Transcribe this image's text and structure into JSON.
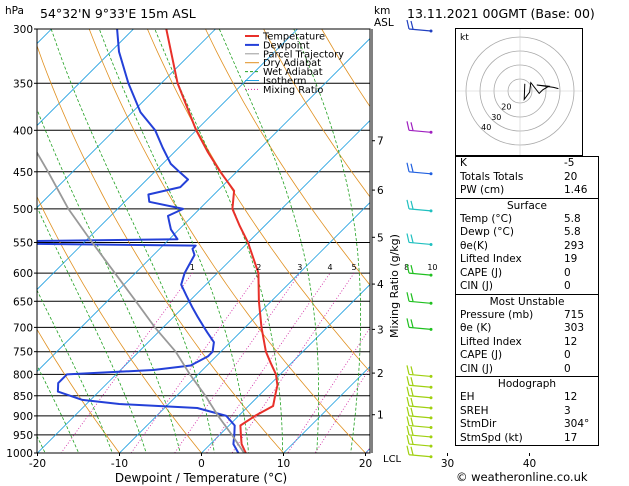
{
  "header": {
    "location": "54°32'N 9°33'E 15m ASL",
    "datetime": "13.11.2021 00GMT (Base: 00)"
  },
  "footer": "© weatheronline.co.uk",
  "axes": {
    "y_unit": "hPa",
    "km_unit": "km",
    "asl_label": "ASL",
    "xlabel": "Dewpoint / Temperature (°C)",
    "mixing_label": "Mixing Ratio (g/kg)",
    "lcl_label": "LCL"
  },
  "chart_data": {
    "type": "line",
    "title": "",
    "xlabel": "Dewpoint / Temperature (°C)",
    "ylabel": "hPa",
    "xlim": [
      -35,
      40
    ],
    "ylim": [
      1000,
      300
    ],
    "pressure_ticks": [
      300,
      350,
      400,
      450,
      500,
      550,
      600,
      650,
      700,
      750,
      800,
      850,
      900,
      950,
      1000
    ],
    "temp_ticks": [
      -30,
      -20,
      -10,
      0,
      10,
      20,
      30,
      40
    ],
    "km_ticks": [
      {
        "label": "1",
        "p": 897
      },
      {
        "label": "2",
        "p": 797
      },
      {
        "label": "3",
        "p": 704
      },
      {
        "label": "4",
        "p": 619
      },
      {
        "label": "5",
        "p": 542
      },
      {
        "label": "6",
        "p": 474
      },
      {
        "label": "7",
        "p": 412
      }
    ],
    "mixing_ratios": [
      "1",
      "2",
      "3",
      "4",
      "5",
      "8",
      "10",
      "15",
      "20",
      "25"
    ],
    "legend": [
      {
        "name": "Temperature",
        "color": "#e8302a"
      },
      {
        "name": "Dewpoint",
        "color": "#2440d8"
      },
      {
        "name": "Parcel Trajectory",
        "color": "#999999"
      },
      {
        "name": "Dry Adiabat",
        "color": "#e09020"
      },
      {
        "name": "Wet Adiabat",
        "color": "#20a020"
      },
      {
        "name": "Isotherm",
        "color": "#20a0e0"
      },
      {
        "name": "Mixing Ratio",
        "color": "#d020a0"
      }
    ],
    "series": [
      {
        "name": "Temperature",
        "points": [
          [
            1013,
            5.8
          ],
          [
            1000,
            5.4
          ],
          [
            975,
            3.8
          ],
          [
            950,
            2.6
          ],
          [
            925,
            1.4
          ],
          [
            900,
            2
          ],
          [
            875,
            3
          ],
          [
            850,
            2
          ],
          [
            825,
            1
          ],
          [
            800,
            -0.5
          ],
          [
            775,
            -2.5
          ],
          [
            750,
            -4.5
          ],
          [
            700,
            -8
          ],
          [
            650,
            -11.5
          ],
          [
            600,
            -15
          ],
          [
            550,
            -20
          ],
          [
            525,
            -23
          ],
          [
            500,
            -26
          ],
          [
            475,
            -28
          ],
          [
            450,
            -32
          ],
          [
            425,
            -36
          ],
          [
            400,
            -40
          ],
          [
            350,
            -48
          ],
          [
            300,
            -56
          ]
        ]
      },
      {
        "name": "Dewpoint",
        "points": [
          [
            1013,
            5.8
          ],
          [
            1000,
            4.5
          ],
          [
            975,
            2.8
          ],
          [
            950,
            1.8
          ],
          [
            925,
            0.7
          ],
          [
            900,
            -1.5
          ],
          [
            880,
            -6
          ],
          [
            870,
            -16
          ],
          [
            860,
            -21
          ],
          [
            840,
            -25
          ],
          [
            820,
            -26
          ],
          [
            800,
            -26
          ],
          [
            790,
            -16
          ],
          [
            780,
            -12
          ],
          [
            760,
            -11
          ],
          [
            750,
            -11
          ],
          [
            730,
            -12
          ],
          [
            710,
            -14
          ],
          [
            700,
            -15
          ],
          [
            680,
            -17
          ],
          [
            660,
            -19
          ],
          [
            640,
            -21
          ],
          [
            620,
            -23
          ],
          [
            600,
            -24
          ],
          [
            570,
            -25
          ],
          [
            560,
            -26
          ],
          [
            555,
            -26
          ],
          [
            550,
            -60
          ],
          [
            545,
            -29
          ],
          [
            530,
            -31
          ],
          [
            520,
            -32
          ],
          [
            510,
            -33
          ],
          [
            500,
            -32
          ],
          [
            490,
            -37
          ],
          [
            480,
            -38
          ],
          [
            470,
            -35
          ],
          [
            460,
            -35
          ],
          [
            450,
            -37
          ],
          [
            440,
            -39
          ],
          [
            420,
            -42
          ],
          [
            400,
            -45
          ],
          [
            380,
            -49
          ],
          [
            350,
            -54
          ],
          [
            320,
            -59
          ],
          [
            300,
            -62
          ]
        ]
      },
      {
        "name": "Parcel Trajectory",
        "points": [
          [
            1013,
            5.8
          ],
          [
            1000,
            5.2
          ],
          [
            950,
            1.5
          ],
          [
            900,
            -2.5
          ],
          [
            850,
            -6.5
          ],
          [
            800,
            -11
          ],
          [
            750,
            -15.5
          ],
          [
            700,
            -21
          ],
          [
            650,
            -26.5
          ],
          [
            600,
            -32.5
          ],
          [
            550,
            -39
          ],
          [
            500,
            -46
          ],
          [
            450,
            -53
          ],
          [
            400,
            -61
          ],
          [
            350,
            -69
          ],
          [
            300,
            -77
          ]
        ]
      }
    ],
    "wind_barbs": [
      {
        "p": 1005,
        "color": "#a0d010"
      },
      {
        "p": 975,
        "color": "#a0d010"
      },
      {
        "p": 950,
        "color": "#a0d010"
      },
      {
        "p": 925,
        "color": "#a0d010"
      },
      {
        "p": 900,
        "color": "#a0d010"
      },
      {
        "p": 875,
        "color": "#a0d010"
      },
      {
        "p": 850,
        "color": "#a0d010"
      },
      {
        "p": 825,
        "color": "#a0d010"
      },
      {
        "p": 800,
        "color": "#a0d010"
      },
      {
        "p": 700,
        "color": "#20c020"
      },
      {
        "p": 650,
        "color": "#20c020"
      },
      {
        "p": 600,
        "color": "#20c020"
      },
      {
        "p": 550,
        "color": "#20c0c0"
      },
      {
        "p": 500,
        "color": "#20c0c0"
      },
      {
        "p": 450,
        "color": "#2060e0"
      },
      {
        "p": 400,
        "color": "#a020c0"
      },
      {
        "p": 300,
        "color": "#2040c0"
      }
    ],
    "hodograph": {
      "label": "kt",
      "ring_labels": [
        "20",
        "30",
        "40"
      ],
      "trace": [
        [
          0.4,
          0.6
        ],
        [
          0.35,
          -0.7
        ],
        [
          0.8,
          -0.1
        ],
        [
          0.9,
          0.7
        ],
        [
          1.6,
          -0.2
        ],
        [
          1.9,
          0.1
        ],
        [
          2.4,
          0.4
        ],
        [
          1.4,
          0.5
        ],
        [
          2.8,
          0.3
        ],
        [
          3.2,
          0.2
        ]
      ]
    }
  },
  "indices": {
    "rows": [
      {
        "label": "K",
        "value": "-5"
      },
      {
        "label": "Totals Totals",
        "value": "20"
      },
      {
        "label": "PW (cm)",
        "value": "1.46"
      }
    ]
  },
  "surface": {
    "title": "Surface",
    "rows": [
      {
        "label": "Temp (°C)",
        "value": "5.8"
      },
      {
        "label": "Dewp (°C)",
        "value": "5.8"
      },
      {
        "label": "θe(K)",
        "value": "293"
      },
      {
        "label": "Lifted Index",
        "value": "19"
      },
      {
        "label": "CAPE (J)",
        "value": "0"
      },
      {
        "label": "CIN (J)",
        "value": "0"
      }
    ]
  },
  "most_unstable": {
    "title": "Most Unstable",
    "rows": [
      {
        "label": "Pressure (mb)",
        "value": "715"
      },
      {
        "label": "θe (K)",
        "value": "303"
      },
      {
        "label": "Lifted Index",
        "value": "12"
      },
      {
        "label": "CAPE (J)",
        "value": "0"
      },
      {
        "label": "CIN (J)",
        "value": "0"
      }
    ]
  },
  "hodograph_panel": {
    "title": "Hodograph",
    "rows": [
      {
        "label": "EH",
        "value": "12"
      },
      {
        "label": "SREH",
        "value": "3"
      },
      {
        "label": "StmDir",
        "value": "304°"
      },
      {
        "label": "StmSpd (kt)",
        "value": "17"
      }
    ]
  }
}
